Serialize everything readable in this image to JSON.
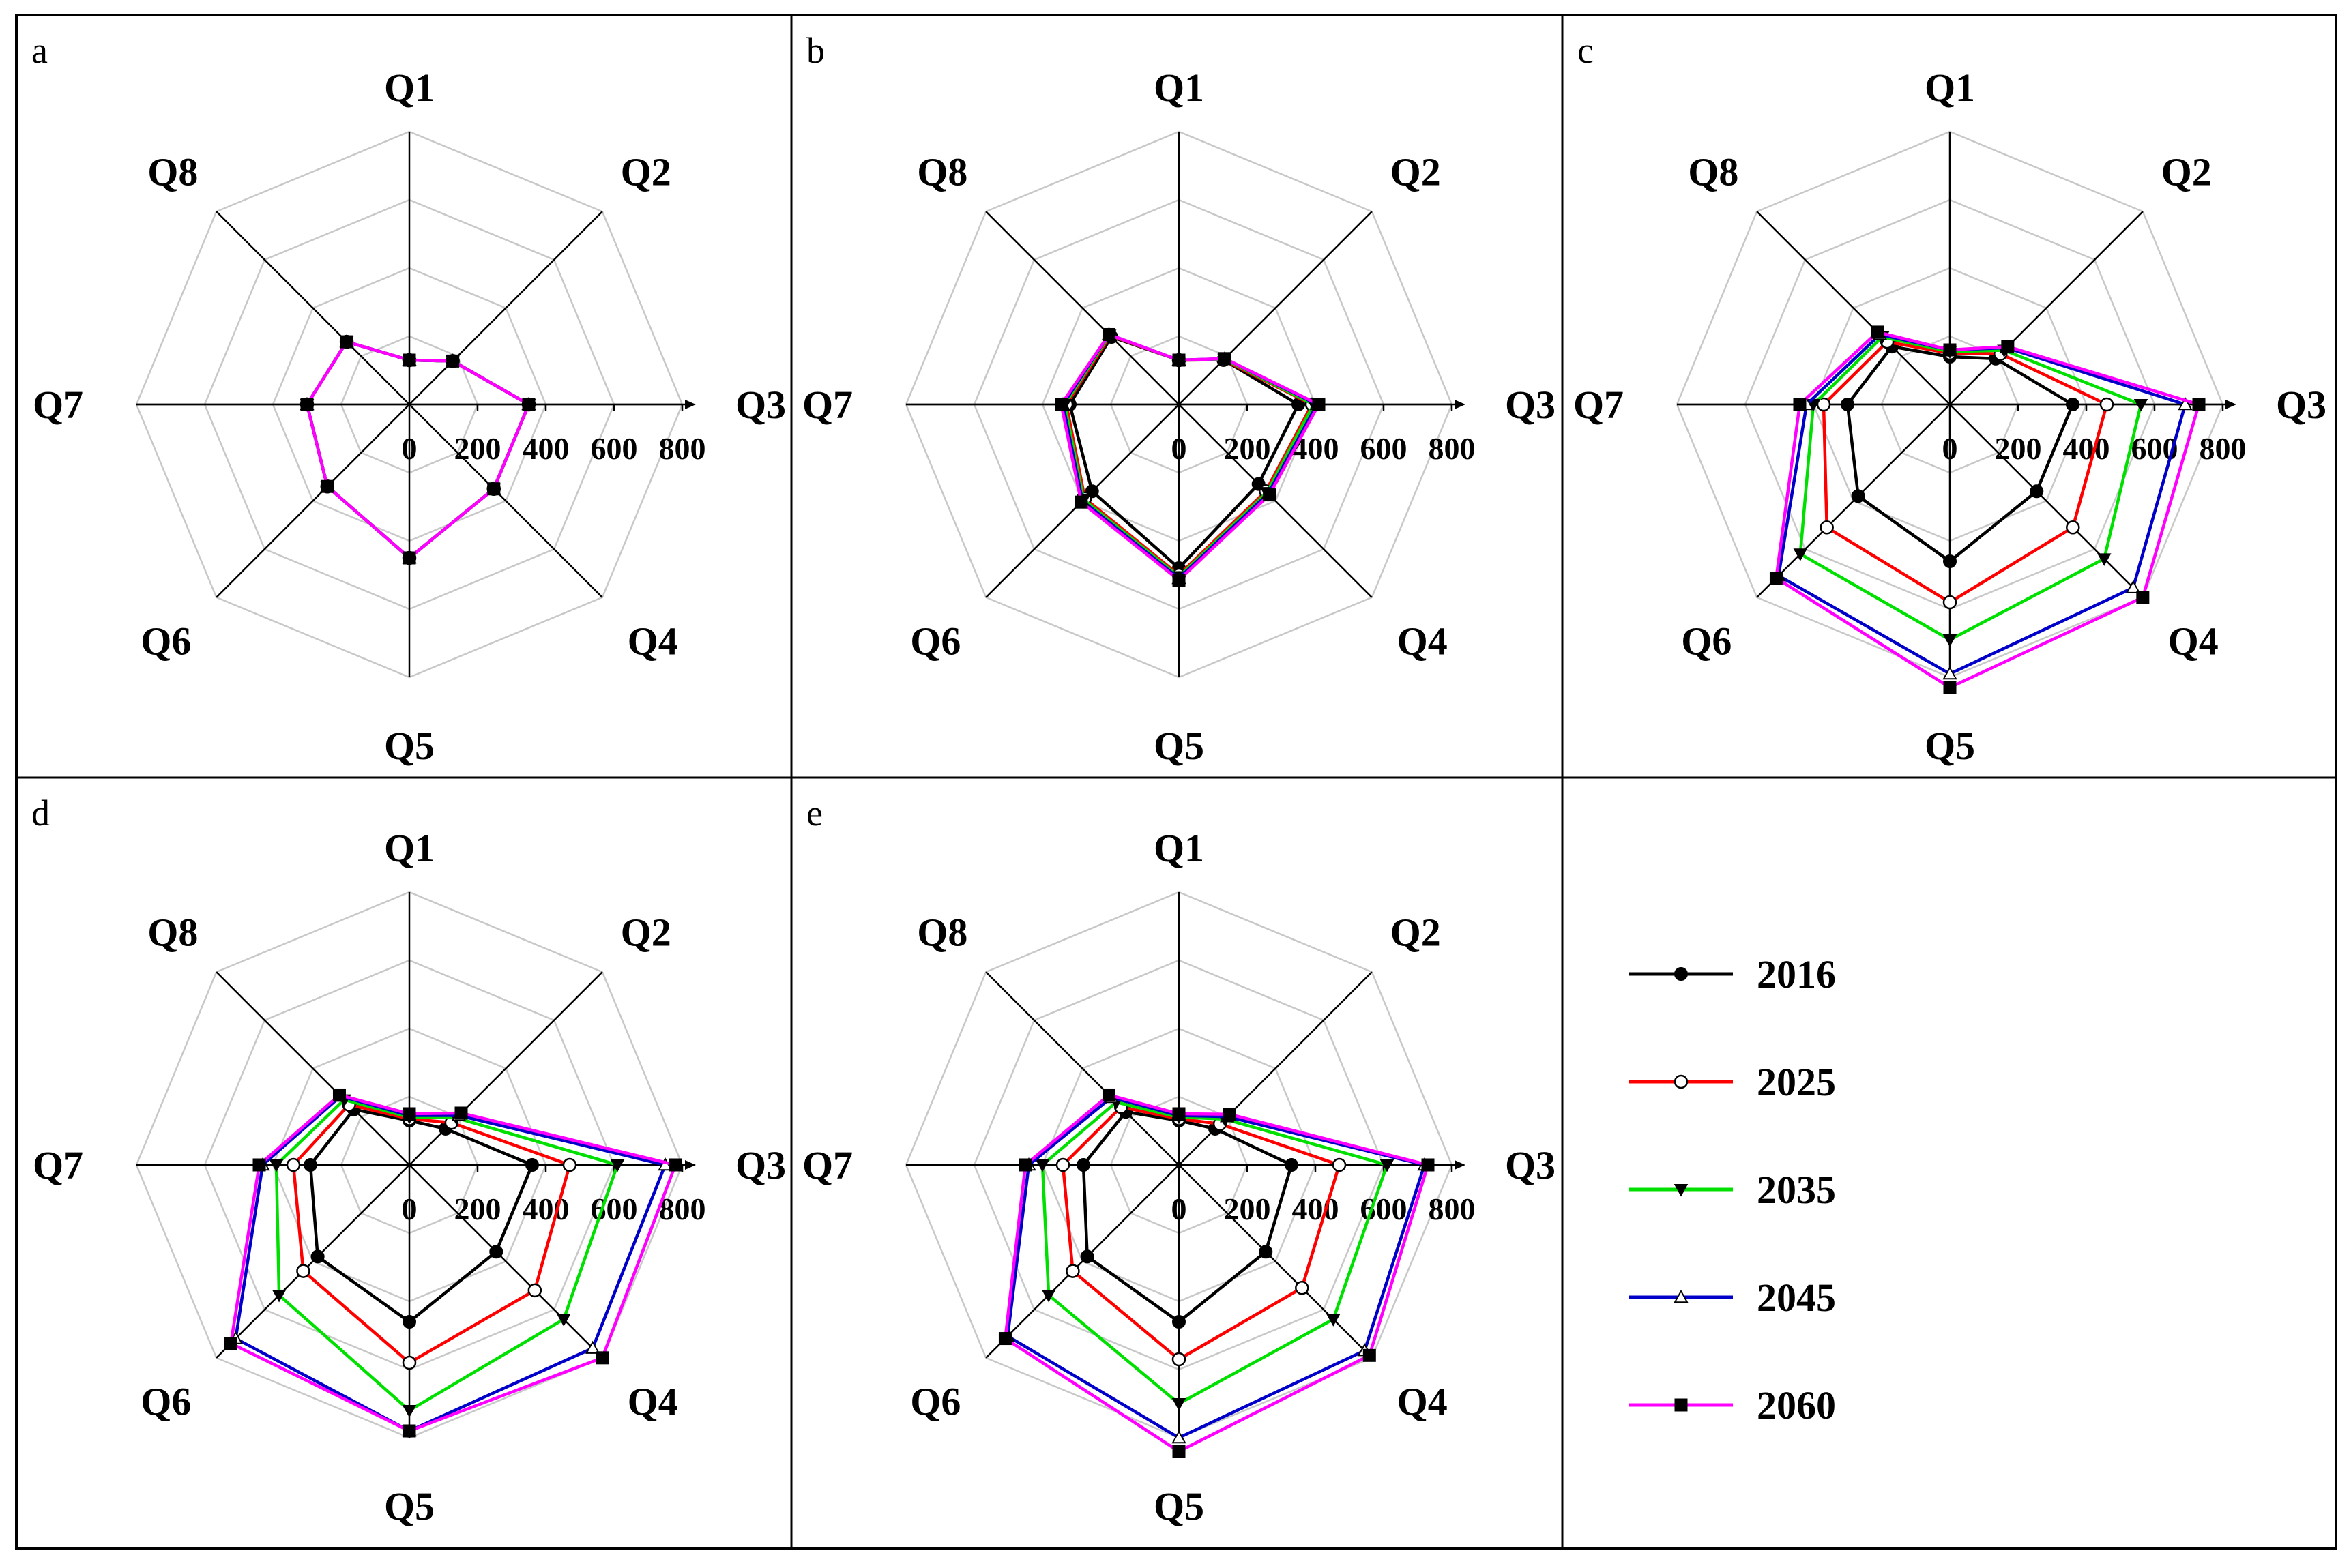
{
  "chart_data": {
    "type": "radar",
    "axes": [
      "Q1",
      "Q2",
      "Q3",
      "Q4",
      "Q5",
      "Q6",
      "Q7",
      "Q8"
    ],
    "rlim": [
      0,
      800
    ],
    "ticks": [
      0,
      200,
      400,
      600,
      800
    ],
    "tick_labels": [
      "0",
      "200",
      "400",
      "600",
      "800"
    ],
    "grid": true,
    "legend_placement": "bottom-right cell",
    "series_styles": [
      {
        "name": "2016",
        "color": "#000000",
        "marker": "filled-circle"
      },
      {
        "name": "2025",
        "color": "#ff0000",
        "marker": "open-circle"
      },
      {
        "name": "2035",
        "color": "#00e000",
        "marker": "filled-triangle-down"
      },
      {
        "name": "2045",
        "color": "#0000c8",
        "marker": "open-triangle-up"
      },
      {
        "name": "2060",
        "color": "#ff00ff",
        "marker": "filled-square"
      }
    ],
    "panels": [
      {
        "label": "a",
        "series": [
          {
            "name": "2016",
            "values": [
              130,
              180,
              350,
              350,
              450,
              340,
              300,
              260
            ]
          },
          {
            "name": "2025",
            "values": [
              130,
              180,
              350,
              350,
              450,
              340,
              300,
              260
            ]
          },
          {
            "name": "2035",
            "values": [
              130,
              180,
              350,
              350,
              450,
              340,
              300,
              260
            ]
          },
          {
            "name": "2045",
            "values": [
              130,
              180,
              350,
              350,
              450,
              340,
              300,
              260
            ]
          },
          {
            "name": "2060",
            "values": [
              130,
              180,
              350,
              350,
              450,
              340,
              300,
              260
            ]
          }
        ]
      },
      {
        "label": "b",
        "series": [
          {
            "name": "2016",
            "values": [
              130,
              185,
              350,
              330,
              480,
              360,
              320,
              280
            ]
          },
          {
            "name": "2025",
            "values": [
              130,
              185,
              390,
              360,
              500,
              390,
              330,
              285
            ]
          },
          {
            "name": "2035",
            "values": [
              130,
              188,
              395,
              365,
              505,
              395,
              335,
              288
            ]
          },
          {
            "name": "2045",
            "values": [
              130,
              190,
              405,
              370,
              510,
              400,
              340,
              290
            ]
          },
          {
            "name": "2060",
            "values": [
              130,
              190,
              410,
              375,
              515,
              405,
              345,
              290
            ]
          }
        ]
      },
      {
        "label": "c",
        "series": [
          {
            "name": "2016",
            "values": [
              140,
              190,
              360,
              360,
              460,
              380,
              300,
              240
            ]
          },
          {
            "name": "2025",
            "values": [
              150,
              210,
              460,
              510,
              580,
              510,
              370,
              260
            ]
          },
          {
            "name": "2035",
            "values": [
              155,
              225,
              560,
              640,
              690,
              620,
              400,
              280
            ]
          },
          {
            "name": "2045",
            "values": [
              160,
              235,
              690,
              760,
              790,
              710,
              420,
              290
            ]
          },
          {
            "name": "2060",
            "values": [
              160,
              240,
              730,
              800,
              830,
              720,
              440,
              300
            ]
          }
        ]
      },
      {
        "label": "d",
        "series": [
          {
            "name": "2016",
            "values": [
              130,
              150,
              360,
              360,
              460,
              380,
              290,
              230
            ]
          },
          {
            "name": "2025",
            "values": [
              135,
              175,
              470,
              520,
              580,
              440,
              340,
              250
            ]
          },
          {
            "name": "2035",
            "values": [
              140,
              195,
              610,
              640,
              720,
              540,
              390,
              270
            ]
          },
          {
            "name": "2045",
            "values": [
              145,
              205,
              750,
              760,
              780,
              720,
              430,
              285
            ]
          },
          {
            "name": "2060",
            "values": [
              150,
              215,
              780,
              800,
              780,
              740,
              440,
              290
            ]
          }
        ]
      },
      {
        "label": "e",
        "series": [
          {
            "name": "2016",
            "values": [
              130,
              150,
              330,
              360,
              460,
              380,
              280,
              220
            ]
          },
          {
            "name": "2025",
            "values": [
              135,
              170,
              470,
              510,
              570,
              440,
              340,
              240
            ]
          },
          {
            "name": "2035",
            "values": [
              140,
              190,
              610,
              640,
              700,
              540,
              400,
              260
            ]
          },
          {
            "name": "2045",
            "values": [
              145,
              200,
              720,
              770,
              800,
              710,
              440,
              280
            ]
          },
          {
            "name": "2060",
            "values": [
              150,
              210,
              730,
              790,
              840,
              720,
              450,
              290
            ]
          }
        ]
      }
    ]
  }
}
